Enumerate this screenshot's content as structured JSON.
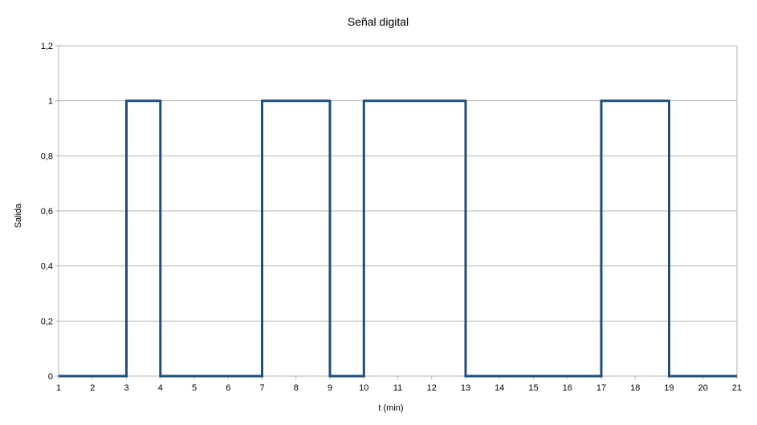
{
  "chart_data": {
    "type": "line",
    "title": "Señal digital",
    "xlabel": "t (min)",
    "ylabel": "Salida",
    "xlim": [
      1,
      21
    ],
    "ylim": [
      0,
      1.2
    ],
    "x_ticks": [
      "1",
      "2",
      "3",
      "4",
      "5",
      "6",
      "7",
      "8",
      "9",
      "10",
      "11",
      "12",
      "13",
      "14",
      "15",
      "16",
      "17",
      "18",
      "19",
      "20",
      "21"
    ],
    "y_ticks": [
      "0",
      "0,2",
      "0,4",
      "0,6",
      "0,8",
      "1",
      "1,2"
    ],
    "grid": "horizontal",
    "series": [
      {
        "color": "#1f4e79",
        "points": [
          [
            1,
            0
          ],
          [
            3,
            0
          ],
          [
            3,
            1
          ],
          [
            4,
            1
          ],
          [
            4,
            0
          ],
          [
            7,
            0
          ],
          [
            7,
            1
          ],
          [
            9,
            1
          ],
          [
            9,
            0
          ],
          [
            10,
            0
          ],
          [
            10,
            1
          ],
          [
            13,
            1
          ],
          [
            13,
            0
          ],
          [
            17,
            0
          ],
          [
            17,
            1
          ],
          [
            19,
            1
          ],
          [
            19,
            0
          ],
          [
            21,
            0
          ]
        ]
      }
    ]
  }
}
